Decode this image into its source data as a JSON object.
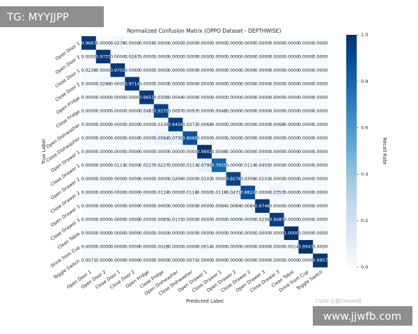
{
  "chart_data": {
    "type": "heatmap",
    "title": "Normalized Confusion Matrix (OPPO Dataset - DEPTHWISE)",
    "x_label": "Predicted Label",
    "y_label": "True Label",
    "colorbar_label": "Recall Rate",
    "cmap": "Blues",
    "categories": [
      "Open Door 1",
      "Open Door 2",
      "Close Door 1",
      "Close Door 2",
      "Open Fridge",
      "Close Fridge",
      "Open Dishwasher",
      "Close Dishwasher",
      "Open Drawer 1",
      "Close Drawer 1",
      "Open Drawer 2",
      "Close Drawer 2",
      "Open Drawer 3",
      "Close Drawer 3",
      "Clean Table",
      "Drink from Cup",
      "Toggle Switch"
    ],
    "values": [
      [
        0.9667,
        0,
        0.0278,
        0,
        0.0056,
        0,
        0,
        0,
        0,
        0,
        0,
        0,
        0,
        0,
        0,
        0,
        0
      ],
      [
        0,
        0.9733,
        0,
        0.0267,
        0,
        0,
        0,
        0,
        0,
        0,
        0,
        0,
        0,
        0,
        0,
        0,
        0
      ],
      [
        0.0238,
        0,
        0.9702,
        0.006,
        0,
        0,
        0,
        0,
        0,
        0,
        0,
        0,
        0,
        0,
        0,
        0,
        0
      ],
      [
        0,
        0.0286,
        0,
        0.9714,
        0,
        0,
        0,
        0,
        0,
        0,
        0,
        0,
        0,
        0,
        0,
        0,
        0
      ],
      [
        0,
        0,
        0,
        0,
        0.9651,
        0.0306,
        0.0044,
        0,
        0,
        0,
        0,
        0,
        0,
        0,
        0,
        0,
        0
      ],
      [
        0,
        0,
        0,
        0,
        0.0483,
        0.9275,
        0.0097,
        0.0097,
        0,
        0.0048,
        0,
        0,
        0,
        0,
        0,
        0,
        0
      ],
      [
        0,
        0,
        0,
        0,
        0,
        0.0136,
        0.9456,
        0.0272,
        0.0068,
        0,
        0,
        0,
        0,
        0.0068,
        0,
        0,
        0
      ],
      [
        0,
        0,
        0,
        0,
        0,
        0.0584,
        0.073,
        0.8686,
        0,
        0,
        0,
        0,
        0,
        0,
        0,
        0,
        0
      ],
      [
        0,
        0,
        0,
        0,
        0,
        0,
        0,
        0,
        0.9902,
        0.0098,
        0,
        0,
        0,
        0,
        0,
        0,
        0
      ],
      [
        0,
        0,
        0.0114,
        0,
        0.0227,
        0.0227,
        0,
        0.0114,
        0.0795,
        0.7955,
        0,
        0.0114,
        0.0455,
        0,
        0,
        0,
        0
      ],
      [
        0,
        0,
        0,
        0,
        0,
        0,
        0.0206,
        0,
        0.0103,
        0,
        0.9278,
        0.0309,
        0.0103,
        0,
        0,
        0,
        0
      ],
      [
        0,
        0,
        0,
        0,
        0,
        0.0118,
        0,
        0.0118,
        0,
        0.0118,
        0.0471,
        0.8824,
        0,
        0.0353,
        0,
        0,
        0
      ],
      [
        0,
        0,
        0,
        0,
        0,
        0,
        0,
        0,
        0,
        0.0084,
        0.0084,
        0.0084,
        0.9748,
        0,
        0,
        0,
        0
      ],
      [
        0,
        0,
        0,
        0,
        0,
        0.0085,
        0.0171,
        0,
        0,
        0,
        0,
        0,
        0.0256,
        0.9487,
        0,
        0,
        0
      ],
      [
        0,
        0,
        0,
        0,
        0,
        0,
        0,
        0,
        0,
        0,
        0,
        0,
        0,
        0,
        1,
        0,
        0
      ],
      [
        0,
        0,
        0,
        0,
        0,
        0.0028,
        0,
        0,
        0.0014,
        0,
        0,
        0,
        0,
        0,
        0.0014,
        0.9943,
        0
      ],
      [
        0.0071,
        0,
        0,
        0,
        0,
        0,
        0,
        0.0071,
        0,
        0,
        0,
        0,
        0,
        0,
        0,
        0,
        0.9857
      ]
    ],
    "value_labels": [
      [
        "0.9667",
        "0.0000",
        "0.0278",
        "0.0000",
        "0.0056",
        "0.0000",
        "0.0000",
        "0.0000",
        "0.0000",
        "0.0000",
        "0.0000",
        "0.0000",
        "0.0000",
        "0.0000",
        "0.0000",
        "0.0000",
        "0.0000"
      ],
      [
        "0.0000",
        "0.9733",
        "0.0000",
        "0.0267",
        "0.0000",
        "0.0000",
        "0.0000",
        "0.0000",
        "0.0000",
        "0.0000",
        "0.0000",
        "0.0000",
        "0.0000",
        "0.0000",
        "0.0000",
        "0.0000",
        "0.0000"
      ],
      [
        "0.0238",
        "0.0000",
        "0.9702",
        "0.0060",
        "0.0000",
        "0.0000",
        "0.0000",
        "0.0000",
        "0.0000",
        "0.0000",
        "0.0000",
        "0.0000",
        "0.0000",
        "0.0000",
        "0.0000",
        "0.0000",
        "0.0000"
      ],
      [
        "0.0000",
        "0.0286",
        "0.0000",
        "0.9714",
        "0.0000",
        "0.0000",
        "0.0000",
        "0.0000",
        "0.0000",
        "0.0000",
        "0.0000",
        "0.0000",
        "0.0000",
        "0.0000",
        "0.0000",
        "0.0000",
        "0.0000"
      ],
      [
        "0.0000",
        "0.0000",
        "0.0000",
        "0.0000",
        "0.9651",
        "0.0306",
        "0.0044",
        "0.0000",
        "0.0000",
        "0.0000",
        "0.0000",
        "0.0000",
        "0.0000",
        "0.0000",
        "0.0000",
        "0.0000",
        "0.0000"
      ],
      [
        "0.0000",
        "0.0000",
        "0.0000",
        "0.0000",
        "0.0483",
        "0.9275",
        "0.0097",
        "0.0097",
        "0.0000",
        "0.0048",
        "0.0000",
        "0.0000",
        "0.0000",
        "0.0000",
        "0.0000",
        "0.0000",
        "0.0000"
      ],
      [
        "0.0000",
        "0.0000",
        "0.0000",
        "0.0000",
        "0.0000",
        "0.0136",
        "0.9456",
        "0.0272",
        "0.0068",
        "0.0000",
        "0.0000",
        "0.0000",
        "0.0000",
        "0.0068",
        "0.0000",
        "0.0000",
        "0.0000"
      ],
      [
        "0.0000",
        "0.0000",
        "0.0000",
        "0.0000",
        "0.0000",
        "0.0584",
        "0.0730",
        "0.8686",
        "0.0000",
        "0.0000",
        "0.0000",
        "0.0000",
        "0.0000",
        "0.0000",
        "0.0000",
        "0.0000",
        "0.0000"
      ],
      [
        "0.0000",
        "0.0000",
        "0.0000",
        "0.0000",
        "0.0000",
        "0.0000",
        "0.0000",
        "0.0000",
        "0.9902",
        "0.0098",
        "0.0000",
        "0.0000",
        "0.0000",
        "0.0000",
        "0.0000",
        "0.0000",
        "0.0000"
      ],
      [
        "0.0000",
        "0.0000",
        "0.0114",
        "0.0000",
        "0.0227",
        "0.0227",
        "0.0000",
        "0.0114",
        "0.0795",
        "0.7955",
        "0.0000",
        "0.0114",
        "0.0455",
        "0.0000",
        "0.0000",
        "0.0000",
        "0.0000"
      ],
      [
        "0.0000",
        "0.0000",
        "0.0000",
        "0.0000",
        "0.0000",
        "0.0000",
        "0.0206",
        "0.0000",
        "0.0103",
        "0.0000",
        "0.9278",
        "0.0309",
        "0.0103",
        "0.0000",
        "0.0000",
        "0.0000",
        "0.0000"
      ],
      [
        "0.0000",
        "0.0000",
        "0.0000",
        "0.0000",
        "0.0000",
        "0.0118",
        "0.0000",
        "0.0118",
        "0.0000",
        "0.0118",
        "0.0471",
        "0.8824",
        "0.0000",
        "0.0353",
        "0.0000",
        "0.0000",
        "0.0000"
      ],
      [
        "0.0000",
        "0.0000",
        "0.0000",
        "0.0000",
        "0.0000",
        "0.0000",
        "0.0000",
        "0.0000",
        "0.0000",
        "0.0084",
        "0.0084",
        "0.0084",
        "0.9748",
        "0.0000",
        "0.0000",
        "0.0000",
        "0.0000"
      ],
      [
        "0.0000",
        "0.0000",
        "0.0000",
        "0.0000",
        "0.0000",
        "0.0085",
        "0.0171",
        "0.0000",
        "0.0000",
        "0.0000",
        "0.0000",
        "0.0000",
        "0.0256",
        "0.9487",
        "0.0000",
        "0.0000",
        "0.0000"
      ],
      [
        "0.0000",
        "0.0000",
        "0.0000",
        "0.0000",
        "0.0000",
        "0.0000",
        "0.0000",
        "0.0000",
        "0.0000",
        "0.0000",
        "0.0000",
        "0.0000",
        "0.0000",
        "0.0000",
        "1.0000",
        "0.0000",
        "0.0000"
      ],
      [
        "0.0000",
        "0.0000",
        "0.0000",
        "0.0000",
        "0.0000",
        "0.0028",
        "0.0000",
        "0.0000",
        "0.0014",
        "0.0000",
        "0.0000",
        "0.0000",
        "0.0000",
        "0.0000",
        "0.0014",
        "0.9943",
        "0.0000"
      ],
      [
        "0.0071",
        "0.0000",
        "0.0000",
        "0.0000",
        "0.0000",
        "0.0000",
        "0.0000",
        "0.0071",
        "0.0000",
        "0.0000",
        "0.0000",
        "0.0000",
        "0.0000",
        "0.0000",
        "0.0000",
        "0.0000",
        "0.9857"
      ]
    ],
    "clim": [
      0,
      1
    ],
    "cticks": [
      {
        "value": 0,
        "label": "0.0"
      },
      {
        "value": 0.2,
        "label": "0.2"
      },
      {
        "value": 0.4,
        "label": "0.4"
      },
      {
        "value": 0.6,
        "label": "0.6"
      },
      {
        "value": 0.8,
        "label": "0.8"
      },
      {
        "value": 1,
        "label": "1.0"
      }
    ]
  },
  "watermarks": {
    "top_left": "TG: MYYJJPP",
    "source": "CSDN @是Dream呀",
    "site": "www.jjwfb.com"
  }
}
